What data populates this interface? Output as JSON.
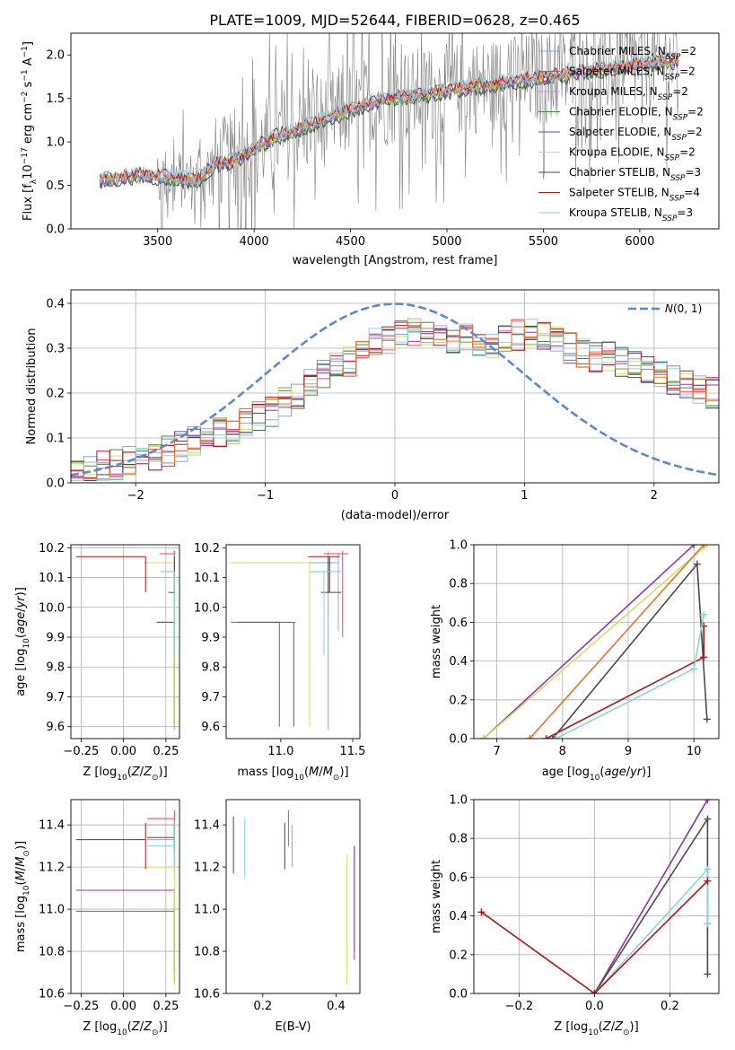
{
  "colors": {
    "grid": "#b0b0b0",
    "data_spectrum": "#7f7f7f",
    "normal_curve": "#5b87d6"
  },
  "legend_entries": [
    {
      "label": "Chabrier MILES, N",
      "sub": "SSP",
      "suffix": "=2",
      "color": "#7fa8e8"
    },
    {
      "label": "Salpeter MILES, N",
      "sub": "SSP",
      "suffix": "=2",
      "color": "#e8445a"
    },
    {
      "label": "Kroupa MILES, N",
      "sub": "SSP",
      "suffix": "=2",
      "color": "#b99ad8"
    },
    {
      "label": "Chabrier ELODIE, N",
      "sub": "SSP",
      "suffix": "=2",
      "color": "#3f8f3f"
    },
    {
      "label": "Salpeter ELODIE, N",
      "sub": "SSP",
      "suffix": "=2",
      "color": "#8e35b5"
    },
    {
      "label": "Kroupa ELODIE, N",
      "sub": "SSP",
      "suffix": "=2",
      "color": "#c8e85a"
    },
    {
      "label": "Chabrier STELIB, N",
      "sub": "SSP",
      "suffix": "=3",
      "color": "#4a4a4a"
    },
    {
      "label": "Salpeter STELIB, N",
      "sub": "SSP",
      "suffix": "=4",
      "color": "#b01818"
    },
    {
      "label": "Kroupa STELIB, N",
      "sub": "SSP",
      "suffix": "=3",
      "color": "#86d6e0"
    }
  ],
  "chart_data": [
    {
      "id": "spectrum",
      "type": "line",
      "title": "PLATE=1009, MJD=52644, FIBERID=0628, z=0.465",
      "xlabel": "wavelength [Angstrom, rest frame]",
      "ylabel": "Flux [f",
      "ylabel_parts": [
        "Flux [f",
        "λ",
        "10",
        "−17",
        " erg cm",
        "−2",
        " s",
        "−1",
        " A",
        "−1",
        "]"
      ],
      "xlim": [
        3050,
        6410
      ],
      "ylim": [
        0,
        2.25
      ],
      "xticks": [
        3500,
        4000,
        4500,
        5000,
        5500,
        6000
      ],
      "yticks": [
        0.0,
        0.5,
        1.0,
        1.5,
        2.0
      ],
      "grid": false,
      "legend": "top-right",
      "x_range_data": [
        3200,
        6200
      ],
      "model_trend": {
        "x": [
          3200,
          3400,
          3600,
          3700,
          3800,
          3900,
          4000,
          4100,
          4300,
          4500,
          4700,
          4900,
          5100,
          5300,
          5500,
          5700,
          5900,
          6100,
          6200
        ],
        "y": [
          0.55,
          0.62,
          0.58,
          0.55,
          0.75,
          0.78,
          0.92,
          1.05,
          1.2,
          1.38,
          1.5,
          1.55,
          1.62,
          1.68,
          1.74,
          1.8,
          1.86,
          1.92,
          1.94
        ]
      }
    },
    {
      "id": "residuals",
      "type": "line",
      "xlabel": "(data-model)/error",
      "ylabel": "Normed distribution",
      "xlim": [
        -2.5,
        2.5
      ],
      "ylim": [
        0,
        0.43
      ],
      "xticks": [
        -2,
        -1,
        0,
        1,
        2
      ],
      "yticks": [
        0.0,
        0.1,
        0.2,
        0.3,
        0.4
      ],
      "grid": true,
      "legend": "top-right",
      "legend_label": "N(0, 1)",
      "bin_edges_start": -2.5,
      "bin_width": 0.1,
      "histogram_reference": [
        0.02,
        0.03,
        0.04,
        0.04,
        0.05,
        0.06,
        0.06,
        0.07,
        0.08,
        0.09,
        0.1,
        0.11,
        0.12,
        0.13,
        0.15,
        0.16,
        0.18,
        0.2,
        0.22,
        0.24,
        0.26,
        0.27,
        0.29,
        0.31,
        0.32,
        0.33,
        0.34,
        0.34,
        0.33,
        0.32,
        0.32,
        0.31,
        0.3,
        0.32,
        0.33,
        0.34,
        0.33,
        0.32,
        0.3,
        0.29,
        0.28,
        0.28,
        0.27,
        0.26,
        0.25,
        0.24,
        0.23,
        0.22,
        0.21,
        0.2
      ]
    },
    {
      "id": "age_vs_Z",
      "type": "scatter",
      "xlabel": "Z [log10(Z/Z⊙)]",
      "ylabel": "age  [log10(age/yr)]",
      "xlim": [
        -0.31,
        0.33
      ],
      "ylim": [
        9.56,
        10.21
      ],
      "xticks": [
        -0.25,
        0.0,
        0.25
      ],
      "yticks": [
        9.6,
        9.7,
        9.8,
        9.9,
        10.0,
        10.1,
        10.2
      ],
      "grid": true
    },
    {
      "id": "age_vs_mass",
      "type": "scatter",
      "xlabel": "mass [log10(M/M⊙)]",
      "ylabel": "",
      "xlim": [
        10.62,
        11.55
      ],
      "ylim": [
        9.56,
        10.21
      ],
      "xticks": [
        11.0,
        11.5
      ],
      "yticks": [
        9.6,
        9.7,
        9.8,
        9.9,
        10.0,
        10.1,
        10.2
      ],
      "grid": false
    },
    {
      "id": "mass_weight_vs_age",
      "type": "line",
      "xlabel": "age  [log10(age/yr)]",
      "ylabel": "mass weight",
      "xlim": [
        6.65,
        10.38
      ],
      "ylim": [
        0,
        1.0
      ],
      "xticks": [
        7,
        8,
        9,
        10
      ],
      "yticks": [
        0.0,
        0.2,
        0.4,
        0.6,
        0.8,
        1.0
      ],
      "grid": true
    },
    {
      "id": "mass_vs_Z",
      "type": "scatter",
      "xlabel": "Z [log10(Z/Z⊙)]",
      "ylabel": "mass [log10(M/M⊙)]",
      "xlim": [
        -0.31,
        0.33
      ],
      "ylim": [
        10.6,
        11.52
      ],
      "xticks": [
        -0.25,
        0.0,
        0.25
      ],
      "yticks": [
        10.6,
        10.8,
        11.0,
        11.2,
        11.4
      ],
      "grid": true
    },
    {
      "id": "mass_vs_EBV",
      "type": "scatter",
      "xlabel": "E(B-V)",
      "ylabel": "",
      "xlim": [
        0.1,
        0.465
      ],
      "ylim": [
        10.6,
        11.52
      ],
      "xticks": [
        0.2,
        0.4
      ],
      "yticks": [
        10.6,
        10.8,
        11.0,
        11.2,
        11.4
      ],
      "grid": false
    },
    {
      "id": "mass_weight_vs_Z",
      "type": "line",
      "xlabel": "Z [log10(Z/Z⊙)]",
      "ylabel": "mass weight",
      "xlim": [
        -0.32,
        0.33
      ],
      "ylim": [
        0,
        1.0
      ],
      "xticks": [
        -0.2,
        0.0,
        0.2
      ],
      "yticks": [
        0.0,
        0.2,
        0.4,
        0.6,
        0.8,
        1.0
      ],
      "grid": true
    }
  ],
  "fits": [
    {
      "color": "#7fa8e8",
      "Z": 0.3,
      "age_lo": 9.59,
      "age_hi": 10.19,
      "age": 10.15,
      "mass": 11.33,
      "mass_lo": 11.15,
      "mass_hi": 11.4,
      "ebv": 0.28,
      "ebv_mass_lo": 11.2,
      "ebv_mass_hi": 11.38
    },
    {
      "color": "#e8445a",
      "Z": 0.3,
      "age_lo": 9.9,
      "age_hi": 10.19,
      "age": 10.18,
      "mass": 11.43,
      "mass_lo": 11.3,
      "mass_hi": 11.47,
      "ebv": 0.27,
      "ebv_mass_lo": 11.3,
      "ebv_mass_hi": 11.47
    },
    {
      "color": "#b99ad8",
      "Z": 0.3,
      "age_lo": 9.92,
      "age_hi": 10.18,
      "age": 10.12,
      "mass": 11.4,
      "mass_lo": 11.2,
      "mass_hi": 11.42,
      "ebv": 0.28,
      "ebv_mass_lo": 11.25,
      "ebv_mass_hi": 11.4
    },
    {
      "color": "#3f8f3f",
      "Z": 0.3,
      "age_lo": 9.6,
      "age_hi": 9.95,
      "age": 9.95,
      "mass": 10.99,
      "mass_lo": 10.65,
      "mass_hi": 11.0,
      "ebv": 0.45,
      "ebv_mass_lo": 10.8,
      "ebv_mass_hi": 11.3
    },
    {
      "color": "#8e35b5",
      "Z": 0.3,
      "age_lo": 9.6,
      "age_hi": 9.95,
      "age": 9.95,
      "mass": 11.09,
      "mass_lo": 10.7,
      "mass_hi": 11.1,
      "ebv": 0.45,
      "ebv_mass_lo": 10.76,
      "ebv_mass_hi": 11.3
    },
    {
      "color": "#c8e85a",
      "Z": 0.3,
      "age_lo": 9.6,
      "age_hi": 10.15,
      "age": 10.15,
      "mass": 11.2,
      "mass_lo": 10.64,
      "mass_hi": 11.2,
      "ebv": 0.43,
      "ebv_mass_lo": 10.64,
      "ebv_mass_hi": 11.26
    },
    {
      "color": "#4a4a4a",
      "Z": 0.3,
      "age_lo": 10.05,
      "age_hi": 10.17,
      "age": 10.05,
      "mass": 11.34,
      "mass_lo": 11.28,
      "mass_hi": 11.42,
      "ebv": 0.12,
      "ebv_mass_lo": 11.17,
      "ebv_mass_hi": 11.44
    },
    {
      "color": "#b01818",
      "Z": 0.13,
      "age_lo": 10.05,
      "age_hi": 10.17,
      "age": 10.17,
      "mass": 11.33,
      "mass_lo": 11.19,
      "mass_hi": 11.41,
      "ebv": 0.26,
      "ebv_mass_lo": 11.19,
      "ebv_mass_hi": 11.41
    },
    {
      "color": "#86d6e0",
      "Z": 0.3,
      "age_lo": 9.84,
      "age_hi": 10.12,
      "age": 10.12,
      "mass": 11.3,
      "mass_lo": 11.2,
      "mass_hi": 11.42,
      "ebv": 0.15,
      "ebv_mass_lo": 11.15,
      "ebv_mass_hi": 11.43
    }
  ],
  "weight_paths_age": [
    {
      "color": "#8e35b5",
      "x": [
        6.8,
        10.0
      ],
      "y": [
        0.0,
        1.0
      ]
    },
    {
      "color": "#c8e85a",
      "x": [
        6.8,
        10.2
      ],
      "y": [
        0.0,
        1.0
      ]
    },
    {
      "color": "#e8742a",
      "x": [
        7.5,
        10.15
      ],
      "y": [
        0.0,
        1.0
      ]
    },
    {
      "color": "#4a4a4a",
      "x": [
        7.85,
        10.05,
        10.2
      ],
      "y": [
        0.0,
        0.9,
        0.1
      ]
    },
    {
      "color": "#b01818",
      "x": [
        7.75,
        10.15,
        10.15
      ],
      "y": [
        0.0,
        0.42,
        0.58
      ]
    },
    {
      "color": "#86d6e0",
      "x": [
        7.9,
        10.0,
        10.15
      ],
      "y": [
        0.0,
        0.36,
        0.64
      ]
    }
  ],
  "weight_paths_Z": [
    {
      "color": "#c8e85a",
      "x": [
        0.0,
        0.3
      ],
      "y": [
        0.0,
        1.0
      ]
    },
    {
      "color": "#8e35b5",
      "x": [
        0.0,
        0.3
      ],
      "y": [
        0.0,
        1.0
      ]
    },
    {
      "color": "#4a4a4a",
      "x": [
        0.0,
        0.3,
        0.3
      ],
      "y": [
        0.0,
        0.9,
        0.1
      ]
    },
    {
      "color": "#86d6e0",
      "x": [
        0.0,
        0.3,
        0.3
      ],
      "y": [
        0.0,
        0.64,
        0.36
      ]
    },
    {
      "color": "#b01818",
      "x": [
        -0.3,
        0.0,
        0.3
      ],
      "y": [
        0.42,
        0.0,
        0.58
      ]
    }
  ]
}
